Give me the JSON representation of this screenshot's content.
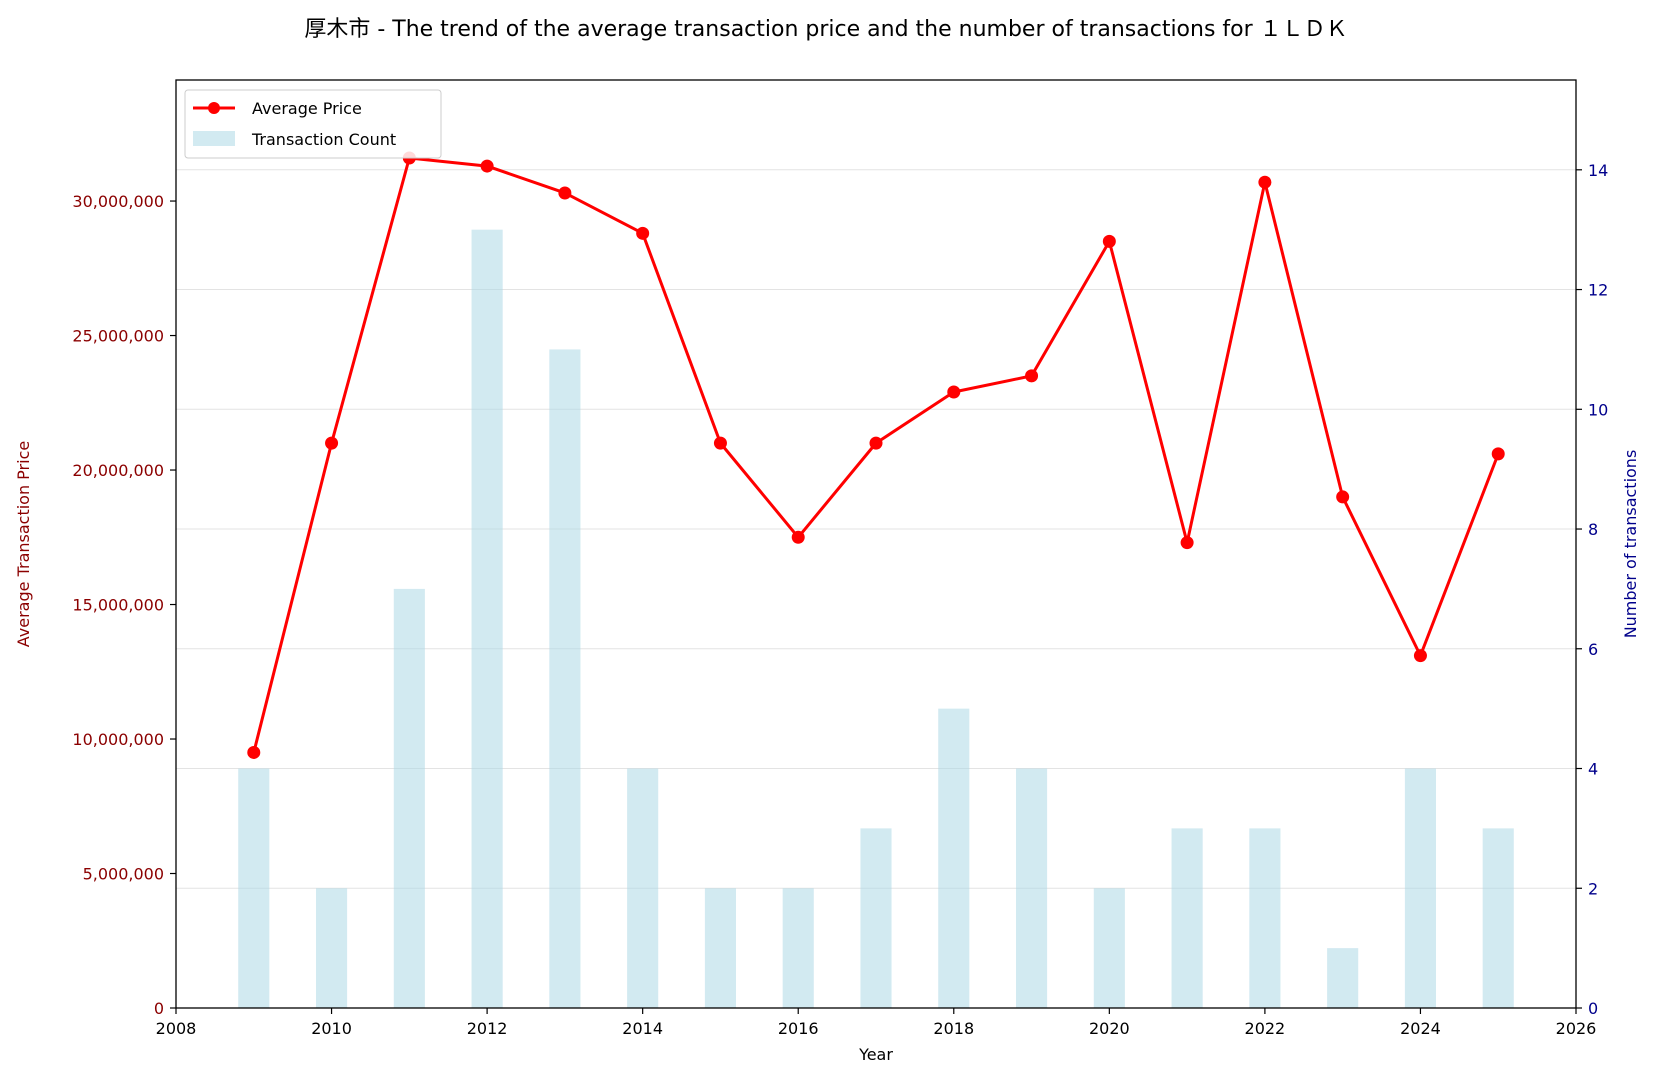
{
  "chart_data": {
    "type": "bar+line",
    "title": "厚木市 - The trend of the average transaction price and the number of transactions for １ＬＤＫ",
    "xlabel": "Year",
    "ylabel_left": "Average Transaction Price",
    "ylabel_right": "Number of transactions",
    "xlim": [
      2008,
      2026
    ],
    "ylim_left": [
      0,
      34500000
    ],
    "ylim_right": [
      0,
      15.5
    ],
    "x_ticks": [
      "2008",
      "2010",
      "2012",
      "2014",
      "2016",
      "2018",
      "2020",
      "2022",
      "2024",
      "2026"
    ],
    "y_left_ticks": [
      "0",
      "5,000,000",
      "10,000,000",
      "15,000,000",
      "20,000,000",
      "25,000,000",
      "30,000,000"
    ],
    "y_right_ticks": [
      "0",
      "2",
      "4",
      "6",
      "8",
      "10",
      "12",
      "14"
    ],
    "grid": true,
    "legend_position": "top-left",
    "colors": {
      "line": "#ff0000",
      "bars": "#add8e6",
      "left_axis": "#8b0000",
      "right_axis": "#00008b"
    },
    "years": [
      2009,
      2010,
      2011,
      2012,
      2013,
      2014,
      2015,
      2016,
      2017,
      2018,
      2019,
      2020,
      2021,
      2022,
      2023,
      2024,
      2025
    ],
    "series": [
      {
        "name": "Average Price",
        "kind": "line",
        "values": [
          9500000,
          21000000,
          31600000,
          31300000,
          30300000,
          28800000,
          21000000,
          17500000,
          21000000,
          22900000,
          23500000,
          28500000,
          17300000,
          30700000,
          19000000,
          13100000,
          20600000
        ]
      },
      {
        "name": "Transaction Count",
        "kind": "bar",
        "values": [
          4,
          2,
          7,
          13,
          11,
          4,
          2,
          2,
          3,
          5,
          4,
          2,
          3,
          3,
          1,
          4,
          3
        ]
      }
    ]
  }
}
